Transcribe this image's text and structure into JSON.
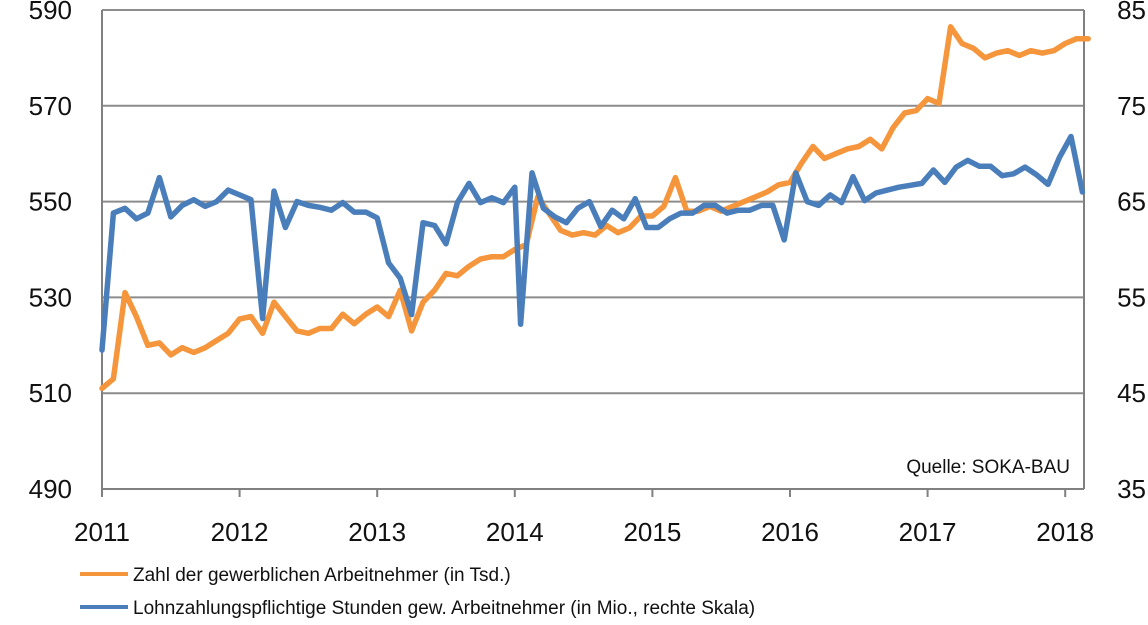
{
  "source_note": "Quelle: SOKA-BAU",
  "colors": {
    "series_orange": "#F5953C",
    "series_blue": "#4A7EBB",
    "grid": "#8C8C8C",
    "axis": "#808080"
  },
  "chart_data": {
    "type": "line",
    "title": "",
    "x_ticks": [
      "2011",
      "2012",
      "2013",
      "2014",
      "2015",
      "2016",
      "2017",
      "2018"
    ],
    "xlim": [
      2011,
      2018.33
    ],
    "y_left": {
      "ticks": [
        "590",
        "570",
        "550",
        "530",
        "510",
        "490"
      ],
      "lim": [
        490,
        590
      ]
    },
    "y_right": {
      "ticks": [
        "85",
        "75",
        "65",
        "55",
        "45",
        "35"
      ],
      "lim": [
        35,
        85
      ]
    },
    "grid": true,
    "legend_position": "bottom",
    "series": [
      {
        "name": "Zahl der gewerblichen Arbeitnehmer (in Tsd.)",
        "axis": "left",
        "color": "#F5953C",
        "x": [
          2011.0,
          2011.083,
          2011.167,
          2011.25,
          2011.333,
          2011.417,
          2011.5,
          2011.583,
          2011.667,
          2011.75,
          2011.833,
          2011.917,
          2012.0,
          2012.083,
          2012.167,
          2012.25,
          2012.333,
          2012.417,
          2012.5,
          2012.583,
          2012.667,
          2012.75,
          2012.833,
          2012.917,
          2013.0,
          2013.083,
          2013.167,
          2013.25,
          2013.333,
          2013.417,
          2013.5,
          2013.583,
          2013.667,
          2013.75,
          2013.833,
          2013.917,
          2014.0,
          2014.083,
          2014.167,
          2014.25,
          2014.333,
          2014.417,
          2014.5,
          2014.583,
          2014.667,
          2014.75,
          2014.833,
          2014.917,
          2015.0,
          2015.083,
          2015.167,
          2015.25,
          2015.333,
          2015.417,
          2015.5,
          2015.583,
          2015.667,
          2015.75,
          2015.833,
          2015.917,
          2016.0,
          2016.083,
          2016.167,
          2016.25,
          2016.333,
          2016.417,
          2016.5,
          2016.583,
          2016.667,
          2016.75,
          2016.833,
          2016.917,
          2017.0,
          2017.083,
          2017.167,
          2017.25,
          2017.333,
          2017.417,
          2017.5,
          2017.583,
          2017.667,
          2017.75,
          2017.833,
          2017.917,
          2018.0,
          2018.083,
          2018.167
        ],
        "values": [
          511,
          513,
          531,
          526,
          520,
          520.5,
          518,
          519.5,
          518.5,
          519.5,
          521,
          522.5,
          525.5,
          526,
          522.5,
          529,
          526,
          523,
          522.5,
          523.5,
          523.5,
          526.5,
          524.5,
          526.5,
          528,
          526,
          531.5,
          523,
          529,
          531.5,
          535,
          534.5,
          536.5,
          538,
          538.5,
          538.5,
          540,
          541,
          551,
          547.5,
          544,
          543,
          543.5,
          543,
          545,
          543.5,
          544.5,
          547,
          547,
          549,
          555,
          548,
          548,
          549,
          548,
          549,
          550,
          551,
          552,
          553.5,
          554,
          558,
          561.5,
          559,
          560,
          561,
          561.5,
          563,
          561,
          565.5,
          568.5,
          569,
          571.5,
          570.5,
          586.5,
          583,
          582,
          580,
          581,
          581.5,
          580.5,
          581.5,
          581,
          581.5,
          583,
          584,
          584
        ]
      },
      {
        "name": "Lohnzahlungspflichtige Stunden gew. Arbeitnehmer (in Mio., rechte Skala)",
        "axis": "right",
        "color": "#4A7EBB",
        "x": [
          2011.0,
          2011.083,
          2011.167,
          2011.25,
          2011.333,
          2011.417,
          2011.5,
          2011.583,
          2011.667,
          2011.75,
          2011.833,
          2011.917,
          2012.0,
          2012.083,
          2012.167,
          2012.25,
          2012.333,
          2012.417,
          2012.5,
          2012.583,
          2012.667,
          2012.75,
          2012.833,
          2012.917,
          2013.0,
          2013.083,
          2013.167,
          2013.25,
          2013.333,
          2013.417,
          2013.5,
          2013.583,
          2013.667,
          2013.75,
          2013.833,
          2013.917,
          2014.0,
          2014.042,
          2014.125,
          2014.208,
          2014.292,
          2014.375,
          2014.458,
          2014.542,
          2014.625,
          2014.708,
          2014.792,
          2014.875,
          2014.958,
          2015.042,
          2015.125,
          2015.208,
          2015.292,
          2015.375,
          2015.458,
          2015.542,
          2015.625,
          2015.708,
          2015.792,
          2015.875,
          2015.958,
          2016.042,
          2016.125,
          2016.208,
          2016.292,
          2016.375,
          2016.458,
          2016.542,
          2016.625,
          2016.708,
          2016.792,
          2016.875,
          2016.958,
          2017.042,
          2017.125,
          2017.208,
          2017.292,
          2017.375,
          2017.458,
          2017.542,
          2017.625,
          2017.708,
          2017.792,
          2017.875,
          2017.958,
          2018.042,
          2018.125
        ],
        "values": [
          49.5,
          63.8,
          64.3,
          63.2,
          63.8,
          67.5,
          63.4,
          64.6,
          65.2,
          64.5,
          65.0,
          66.2,
          65.7,
          65.2,
          52.8,
          66.1,
          62.3,
          65.0,
          64.6,
          64.4,
          64.1,
          64.9,
          63.9,
          63.9,
          63.3,
          58.6,
          57.0,
          53.2,
          62.8,
          62.5,
          60.6,
          64.9,
          66.9,
          64.9,
          65.4,
          64.9,
          66.5,
          52.2,
          68.0,
          64.3,
          63.4,
          62.8,
          64.3,
          65.0,
          62.4,
          64.1,
          63.2,
          65.3,
          62.3,
          62.3,
          63.2,
          63.8,
          63.8,
          64.6,
          64.6,
          63.8,
          64.1,
          64.1,
          64.6,
          64.6,
          61.0,
          68.0,
          65.0,
          64.6,
          65.7,
          64.9,
          67.6,
          65.1,
          65.9,
          66.2,
          66.5,
          66.7,
          66.9,
          68.3,
          67.0,
          68.6,
          69.3,
          68.7,
          68.7,
          67.7,
          67.9,
          68.6,
          67.8,
          66.8,
          69.6,
          71.8,
          66.0
        ]
      }
    ]
  }
}
